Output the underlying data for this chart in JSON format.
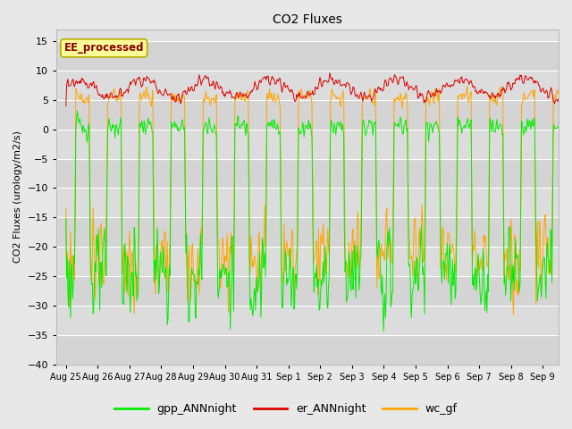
{
  "title": "CO2 Fluxes",
  "ylabel": "CO2 Fluxes (urology/m2/s)",
  "ylim": [
    -40,
    17
  ],
  "yticks": [
    -40,
    -35,
    -30,
    -25,
    -20,
    -15,
    -10,
    -5,
    0,
    5,
    10,
    15
  ],
  "background_color": "#e8e8e8",
  "plot_bg_color": "#e0e0e0",
  "grid_color": "#ffffff",
  "line_green": "#00ee00",
  "line_red": "#dd0000",
  "line_orange": "#ffa500",
  "annotation_text": "EE_processed",
  "annotation_bg": "#ffff99",
  "annotation_border": "#bbaa00",
  "legend_entries": [
    "gpp_ANNnight",
    "er_ANNnight",
    "wc_gf"
  ],
  "tick_labels": [
    "Aug 25",
    "Aug 26",
    "Aug 27",
    "Aug 28",
    "Aug 29",
    "Aug 30",
    "Aug 31",
    "Sep 1",
    "Sep 2",
    "Sep 3",
    "Sep 4",
    "Sep 5",
    "Sep 6",
    "Sep 7",
    "Sep 8",
    "Sep 9"
  ],
  "n_days": 16,
  "points_per_day": 48
}
